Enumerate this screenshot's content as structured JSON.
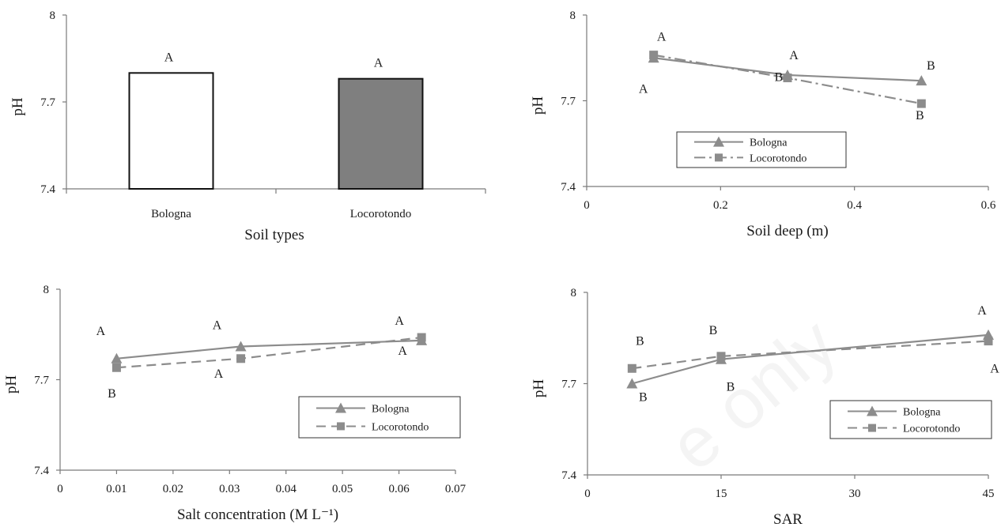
{
  "watermark": "e only",
  "chart_data": [
    {
      "id": "soil-types",
      "type": "bar",
      "categories": [
        "Bologna",
        "Locorotondo"
      ],
      "values": [
        7.8,
        7.78
      ],
      "fills": [
        "#ffffff",
        "#7f7f7f"
      ],
      "letters": [
        "A",
        "A"
      ],
      "xlabel": "Soil  types",
      "ylabel": "pH",
      "ylim": [
        7.4,
        8
      ],
      "yticks": [
        "7.4",
        "7.7",
        "8"
      ],
      "grid": false,
      "legend": null
    },
    {
      "id": "soil-deep",
      "type": "line",
      "xlabel": "Soil  deep (m)",
      "ylabel": "pH",
      "xlim": [
        0,
        0.6
      ],
      "ylim": [
        7.4,
        8
      ],
      "xticks": [
        "0",
        "0.2",
        "0.4",
        "0.6"
      ],
      "yticks": [
        "7.4",
        "7.7",
        "8"
      ],
      "grid": false,
      "legend": {
        "position": "center-right"
      },
      "series": [
        {
          "name": "Bologna",
          "x": [
            0.1,
            0.3,
            0.5
          ],
          "y": [
            7.85,
            7.79,
            7.77
          ],
          "marker": "triangle",
          "dash": "solid",
          "letters": [
            "A",
            "A",
            "B"
          ]
        },
        {
          "name": "Locorotondo",
          "x": [
            0.1,
            0.3,
            0.5
          ],
          "y": [
            7.86,
            7.78,
            7.69
          ],
          "marker": "square",
          "dash": "dashdot",
          "letters": [
            "A",
            "B",
            "B"
          ]
        }
      ]
    },
    {
      "id": "salt-concentration",
      "type": "line",
      "xlabel": "Salt concentration  (M L⁻¹)",
      "ylabel": "pH",
      "xlim": [
        0,
        0.07
      ],
      "ylim": [
        7.4,
        8
      ],
      "xticks": [
        "0",
        "0.01",
        "0.02",
        "0.03",
        "0.04",
        "0.05",
        "0.06",
        "0.07"
      ],
      "yticks": [
        "7.4",
        "7.7",
        "8"
      ],
      "grid": false,
      "legend": {
        "position": "bottom-right"
      },
      "series": [
        {
          "name": "Bologna",
          "x": [
            0.01,
            0.032,
            0.064
          ],
          "y": [
            7.77,
            7.81,
            7.83
          ],
          "marker": "triangle",
          "dash": "solid",
          "letters": [
            "A",
            "A",
            "A"
          ]
        },
        {
          "name": "Locorotondo",
          "x": [
            0.01,
            0.032,
            0.064
          ],
          "y": [
            7.74,
            7.77,
            7.84
          ],
          "marker": "square",
          "dash": "dashed",
          "letters": [
            "B",
            "A",
            "A"
          ]
        }
      ]
    },
    {
      "id": "sar",
      "type": "line",
      "xlabel": "SAR",
      "ylabel": "pH",
      "xlim": [
        0,
        45
      ],
      "ylim": [
        7.4,
        8
      ],
      "xticks": [
        "0",
        "15",
        "30",
        "45"
      ],
      "yticks": [
        "7.4",
        "7.7",
        "8"
      ],
      "grid": false,
      "legend": {
        "position": "bottom-right"
      },
      "series": [
        {
          "name": "Bologna",
          "x": [
            5,
            15,
            45
          ],
          "y": [
            7.7,
            7.78,
            7.86
          ],
          "marker": "triangle",
          "dash": "solid",
          "letters": [
            "B",
            "B",
            "A"
          ]
        },
        {
          "name": "Locorotondo",
          "x": [
            5,
            15,
            45
          ],
          "y": [
            7.75,
            7.79,
            7.84
          ],
          "marker": "square",
          "dash": "dashed",
          "letters": [
            "B",
            "B",
            "A"
          ]
        }
      ]
    }
  ]
}
